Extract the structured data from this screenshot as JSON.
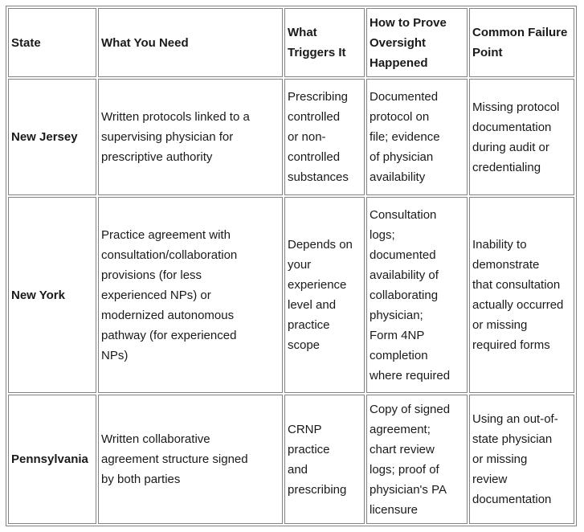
{
  "colors": {
    "background": "#ffffff",
    "border": "#828282",
    "text": "#1a1a1a"
  },
  "table": {
    "headers": [
      "State",
      "What You Need",
      "What\nTriggers It",
      "How to Prove\nOversight\nHappened",
      "Common Failure\nPoint"
    ],
    "rows": [
      {
        "state": "New Jersey",
        "what_you_need": "Written protocols linked to a\nsupervising physician for\nprescriptive authority",
        "what_triggers_it": "Prescribing\ncontrolled\nor non-\ncontrolled\nsubstances",
        "how_to_prove": "Documented\nprotocol on\nfile; evidence\nof physician\navailability",
        "common_failure": "Missing protocol\ndocumentation\nduring audit or\ncredentialing"
      },
      {
        "state": "New York",
        "what_you_need": "Practice agreement with\nconsultation/collaboration\nprovisions (for less\nexperienced NPs) or\nmodernized autonomous\npathway (for experienced\nNPs)",
        "what_triggers_it": "Depends on\nyour\nexperience\nlevel and\npractice\nscope",
        "how_to_prove": "Consultation\nlogs;\ndocumented\navailability of\ncollaborating\nphysician;\nForm 4NP\ncompletion\nwhere required",
        "common_failure": "Inability to\ndemonstrate\nthat consultation\nactually occurred\nor missing\nrequired forms"
      },
      {
        "state": "Pennsylvania",
        "what_you_need": "Written collaborative\nagreement structure signed\nby both parties",
        "what_triggers_it": "CRNP\npractice\nand\nprescribing",
        "how_to_prove": "Copy of signed\nagreement;\nchart review\nlogs; proof of\nphysician's PA\nlicensure",
        "common_failure": "Using an out-of-\nstate physician\nor missing\nreview\ndocumentation"
      }
    ]
  }
}
